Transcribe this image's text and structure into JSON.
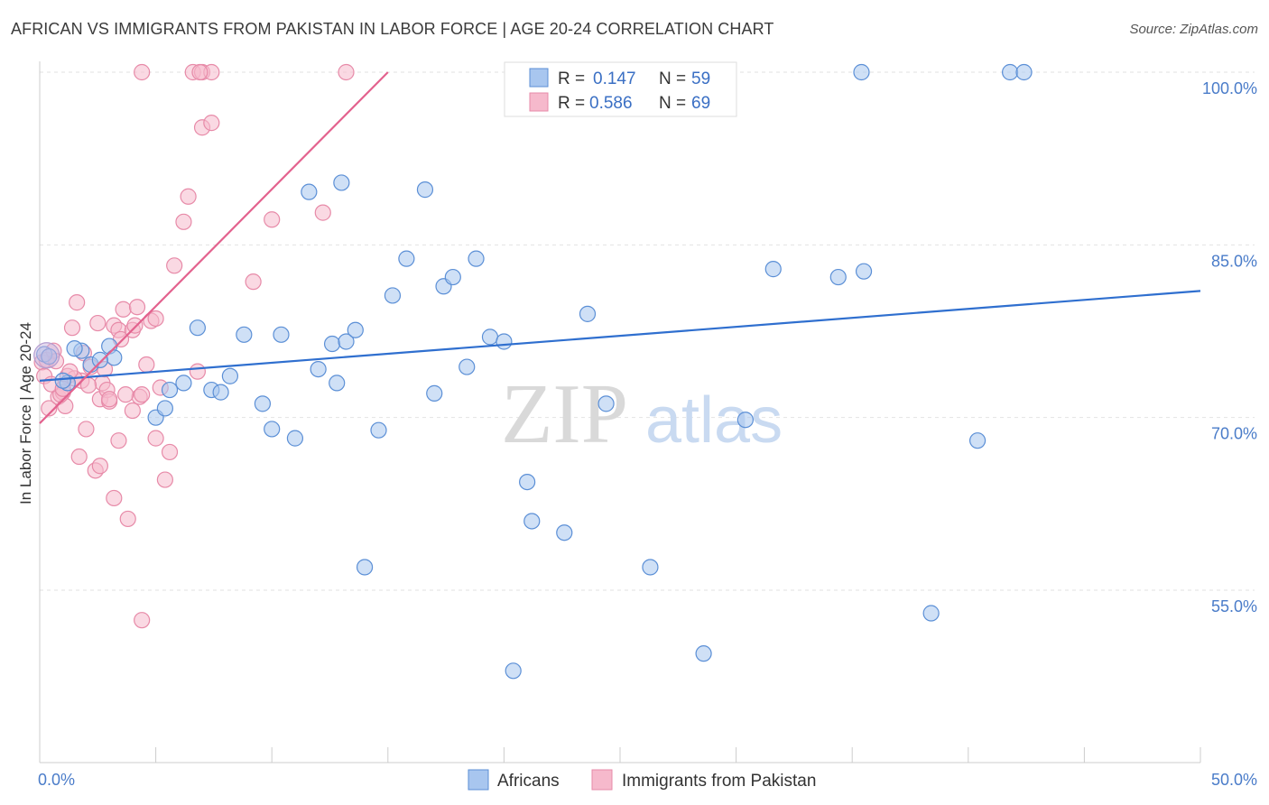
{
  "title": "AFRICAN VS IMMIGRANTS FROM PAKISTAN IN LABOR FORCE | AGE 20-24 CORRELATION CHART",
  "source": "Source: ZipAtlas.com",
  "watermark": {
    "zip": "ZIP",
    "atlas": "atlas"
  },
  "colors": {
    "blue_fill": "#a8c6ef",
    "blue_stroke": "#5b8fd6",
    "blue_line": "#2f6fcf",
    "pink_fill": "#f6b9cc",
    "pink_stroke": "#e78aa8",
    "pink_line": "#e3628e",
    "grid": "#e2e2e2",
    "tick_text": "#4a7cc9"
  },
  "legend": {
    "rows": [
      {
        "r_label": "R =",
        "r_value": "0.147",
        "n_label": "N =",
        "n_value": "59",
        "series": "blue"
      },
      {
        "r_label": "R =",
        "r_value": "0.586",
        "n_label": "N =",
        "n_value": "69",
        "series": "pink"
      }
    ]
  },
  "chart_data": {
    "type": "scatter",
    "title": "AFRICAN VS IMMIGRANTS FROM PAKISTAN IN LABOR FORCE | AGE 20-24 CORRELATION CHART",
    "xlabel": "",
    "ylabel": "In Labor Force | Age 20-24",
    "xlim": [
      0,
      50
    ],
    "ylim": [
      40,
      102
    ],
    "x_tick_labels": [
      "0.0%",
      "50.0%"
    ],
    "y_ticks": [
      {
        "value": 100,
        "label": "100.0%"
      },
      {
        "value": 85,
        "label": "85.0%"
      },
      {
        "value": 70,
        "label": "70.0%"
      },
      {
        "value": 55,
        "label": "55.0%"
      }
    ],
    "grid": true,
    "series": [
      {
        "name": "Africans",
        "color": "blue",
        "trendline": {
          "x": [
            0,
            50
          ],
          "y": [
            73.2,
            81.0
          ]
        },
        "points": [
          [
            0.2,
            75.5
          ],
          [
            0.4,
            75.3
          ],
          [
            1.2,
            73.0
          ],
          [
            1.8,
            75.8
          ],
          [
            2.2,
            74.6
          ],
          [
            1.5,
            76.0
          ],
          [
            3.0,
            76.2
          ],
          [
            3.2,
            75.2
          ],
          [
            5.0,
            70.0
          ],
          [
            5.4,
            70.8
          ],
          [
            5.6,
            72.4
          ],
          [
            6.2,
            73.0
          ],
          [
            6.8,
            77.8
          ],
          [
            7.4,
            72.4
          ],
          [
            7.8,
            72.2
          ],
          [
            8.2,
            73.6
          ],
          [
            8.8,
            77.2
          ],
          [
            9.6,
            71.2
          ],
          [
            10.0,
            69.0
          ],
          [
            10.4,
            77.2
          ],
          [
            11.0,
            68.2
          ],
          [
            11.6,
            89.6
          ],
          [
            12.0,
            74.2
          ],
          [
            12.6,
            76.4
          ],
          [
            13.0,
            90.4
          ],
          [
            13.2,
            76.6
          ],
          [
            13.6,
            77.6
          ],
          [
            14.0,
            57.0
          ],
          [
            14.6,
            68.9
          ],
          [
            15.2,
            80.6
          ],
          [
            15.8,
            83.8
          ],
          [
            16.6,
            89.8
          ],
          [
            17.0,
            72.1
          ],
          [
            17.4,
            81.4
          ],
          [
            17.8,
            82.2
          ],
          [
            18.4,
            74.4
          ],
          [
            18.8,
            83.8
          ],
          [
            19.4,
            77.0
          ],
          [
            20.0,
            76.6
          ],
          [
            20.4,
            48.0
          ],
          [
            21.0,
            64.4
          ],
          [
            21.2,
            61.0
          ],
          [
            22.6,
            60.0
          ],
          [
            23.6,
            79.0
          ],
          [
            24.4,
            71.2
          ],
          [
            26.3,
            57.0
          ],
          [
            28.6,
            49.5
          ],
          [
            30.4,
            69.8
          ],
          [
            31.6,
            82.9
          ],
          [
            34.4,
            82.2
          ],
          [
            35.4,
            100.0
          ],
          [
            35.5,
            82.7
          ],
          [
            38.4,
            53.0
          ],
          [
            40.4,
            68.0
          ],
          [
            41.8,
            100.0
          ],
          [
            42.4,
            100.0
          ],
          [
            1.0,
            73.2
          ],
          [
            2.6,
            75.0
          ],
          [
            12.8,
            73.0
          ]
        ]
      },
      {
        "name": "Immigrants from Pakistan",
        "color": "pink",
        "trendline": {
          "x": [
            0,
            15
          ],
          "y": [
            69.5,
            100.0
          ]
        },
        "points": [
          [
            0.1,
            74.8
          ],
          [
            0.2,
            73.6
          ],
          [
            0.3,
            75.0
          ],
          [
            0.4,
            70.8
          ],
          [
            0.6,
            75.8
          ],
          [
            0.8,
            71.8
          ],
          [
            1.0,
            72.2
          ],
          [
            1.1,
            71.0
          ],
          [
            1.2,
            73.6
          ],
          [
            1.4,
            77.8
          ],
          [
            1.6,
            80.0
          ],
          [
            1.7,
            66.6
          ],
          [
            1.8,
            73.2
          ],
          [
            2.0,
            69.0
          ],
          [
            2.2,
            74.4
          ],
          [
            2.4,
            65.4
          ],
          [
            2.6,
            71.6
          ],
          [
            2.7,
            73.0
          ],
          [
            2.9,
            72.4
          ],
          [
            3.0,
            71.4
          ],
          [
            3.2,
            78.0
          ],
          [
            3.4,
            77.6
          ],
          [
            3.5,
            76.8
          ],
          [
            3.6,
            79.4
          ],
          [
            3.8,
            61.2
          ],
          [
            4.0,
            77.6
          ],
          [
            4.1,
            78.0
          ],
          [
            4.2,
            79.6
          ],
          [
            4.3,
            71.8
          ],
          [
            4.4,
            72.0
          ],
          [
            4.6,
            74.6
          ],
          [
            4.8,
            78.4
          ],
          [
            5.0,
            68.2
          ],
          [
            5.2,
            72.6
          ],
          [
            5.4,
            64.6
          ],
          [
            5.6,
            67.0
          ],
          [
            5.8,
            83.2
          ],
          [
            6.2,
            87.0
          ],
          [
            6.4,
            89.2
          ],
          [
            6.8,
            74.0
          ],
          [
            7.0,
            95.2
          ],
          [
            7.4,
            95.6
          ],
          [
            4.4,
            52.4
          ],
          [
            3.2,
            63.0
          ],
          [
            3.4,
            68.0
          ],
          [
            2.6,
            65.8
          ],
          [
            10.0,
            87.2
          ],
          [
            12.2,
            87.8
          ],
          [
            9.2,
            81.8
          ],
          [
            4.4,
            100.0
          ],
          [
            6.6,
            100.0
          ],
          [
            7.0,
            100.0
          ],
          [
            7.4,
            100.0
          ],
          [
            13.2,
            100.0
          ],
          [
            2.1,
            72.8
          ],
          [
            1.5,
            73.4
          ],
          [
            0.9,
            72.0
          ],
          [
            2.5,
            78.2
          ],
          [
            3.0,
            71.6
          ],
          [
            1.3,
            74.0
          ],
          [
            0.5,
            72.9
          ],
          [
            1.9,
            75.6
          ],
          [
            4.0,
            70.6
          ],
          [
            2.8,
            74.2
          ],
          [
            3.7,
            72.0
          ],
          [
            0.7,
            74.9
          ],
          [
            5.0,
            78.6
          ],
          [
            6.9,
            100.0
          ],
          [
            1.0,
            72.5
          ]
        ]
      }
    ]
  }
}
